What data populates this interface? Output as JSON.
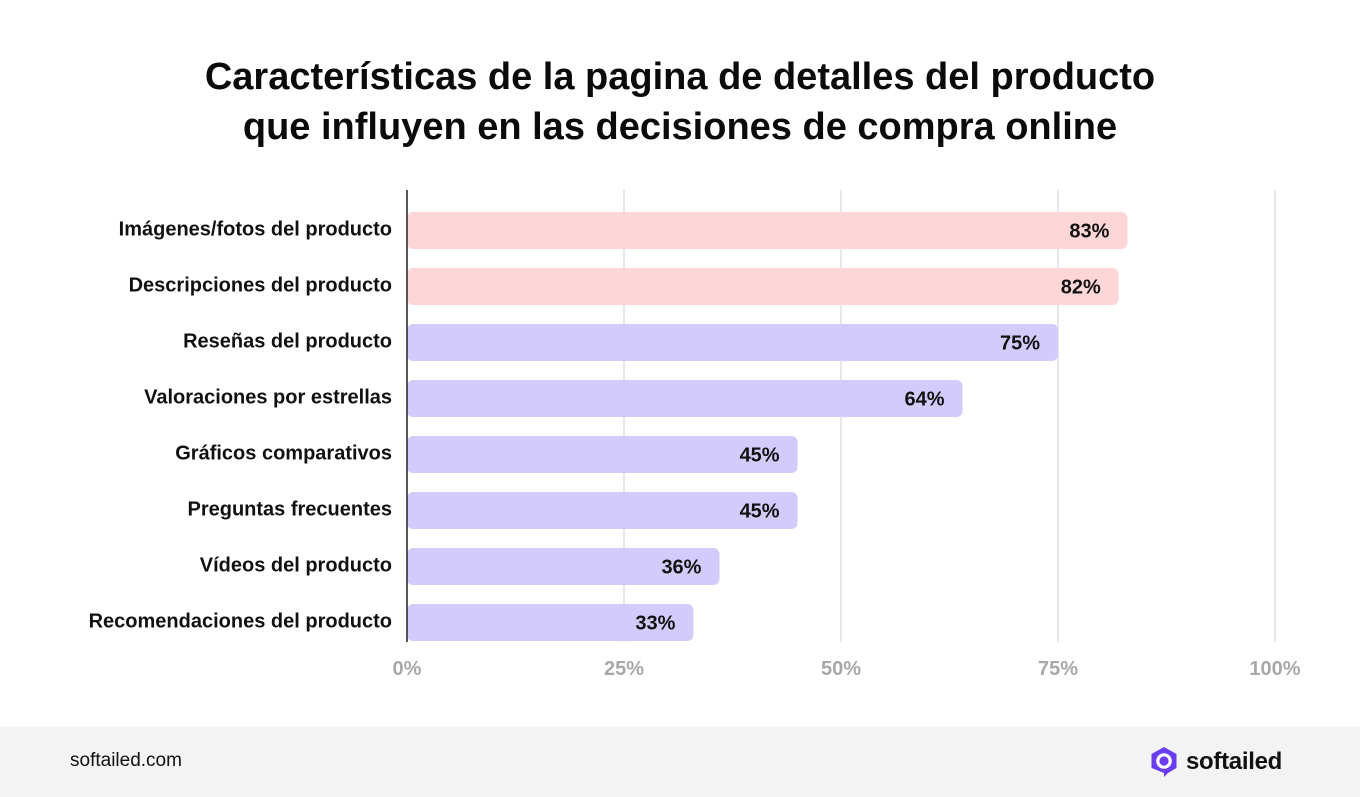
{
  "chart_data": {
    "type": "bar",
    "orientation": "horizontal",
    "title_lines": [
      "Características de la pagina de detalles del producto",
      "que influyen en las decisiones de compra online"
    ],
    "categories": [
      "Imágenes/fotos del producto",
      "Descripciones del producto",
      "Reseñas del producto",
      "Valoraciones por estrellas",
      "Gráficos comparativos",
      "Preguntas frecuentes",
      "Vídeos del producto",
      "Recomendaciones del producto"
    ],
    "values": [
      83,
      82,
      75,
      64,
      45,
      45,
      36,
      33
    ],
    "value_labels": [
      "83%",
      "82%",
      "75%",
      "64%",
      "45%",
      "45%",
      "36%",
      "33%"
    ],
    "highlight": [
      true,
      true,
      false,
      false,
      false,
      false,
      false,
      false
    ],
    "xlim": [
      0,
      100
    ],
    "x_ticks": [
      0,
      25,
      50,
      75,
      100
    ],
    "x_tick_labels": [
      "0%",
      "25%",
      "50%",
      "75%",
      "100%"
    ],
    "grid": true,
    "colors": {
      "highlight_bar": "#fdd6d8",
      "bar": "#d3ccfb",
      "grid": "#e6e6ec",
      "axis": "#222222",
      "tick_label": "#a8a8a8"
    }
  },
  "footer": {
    "site": "softailed.com",
    "brand_name": "softailed",
    "brand_color": "#6a3df0"
  }
}
